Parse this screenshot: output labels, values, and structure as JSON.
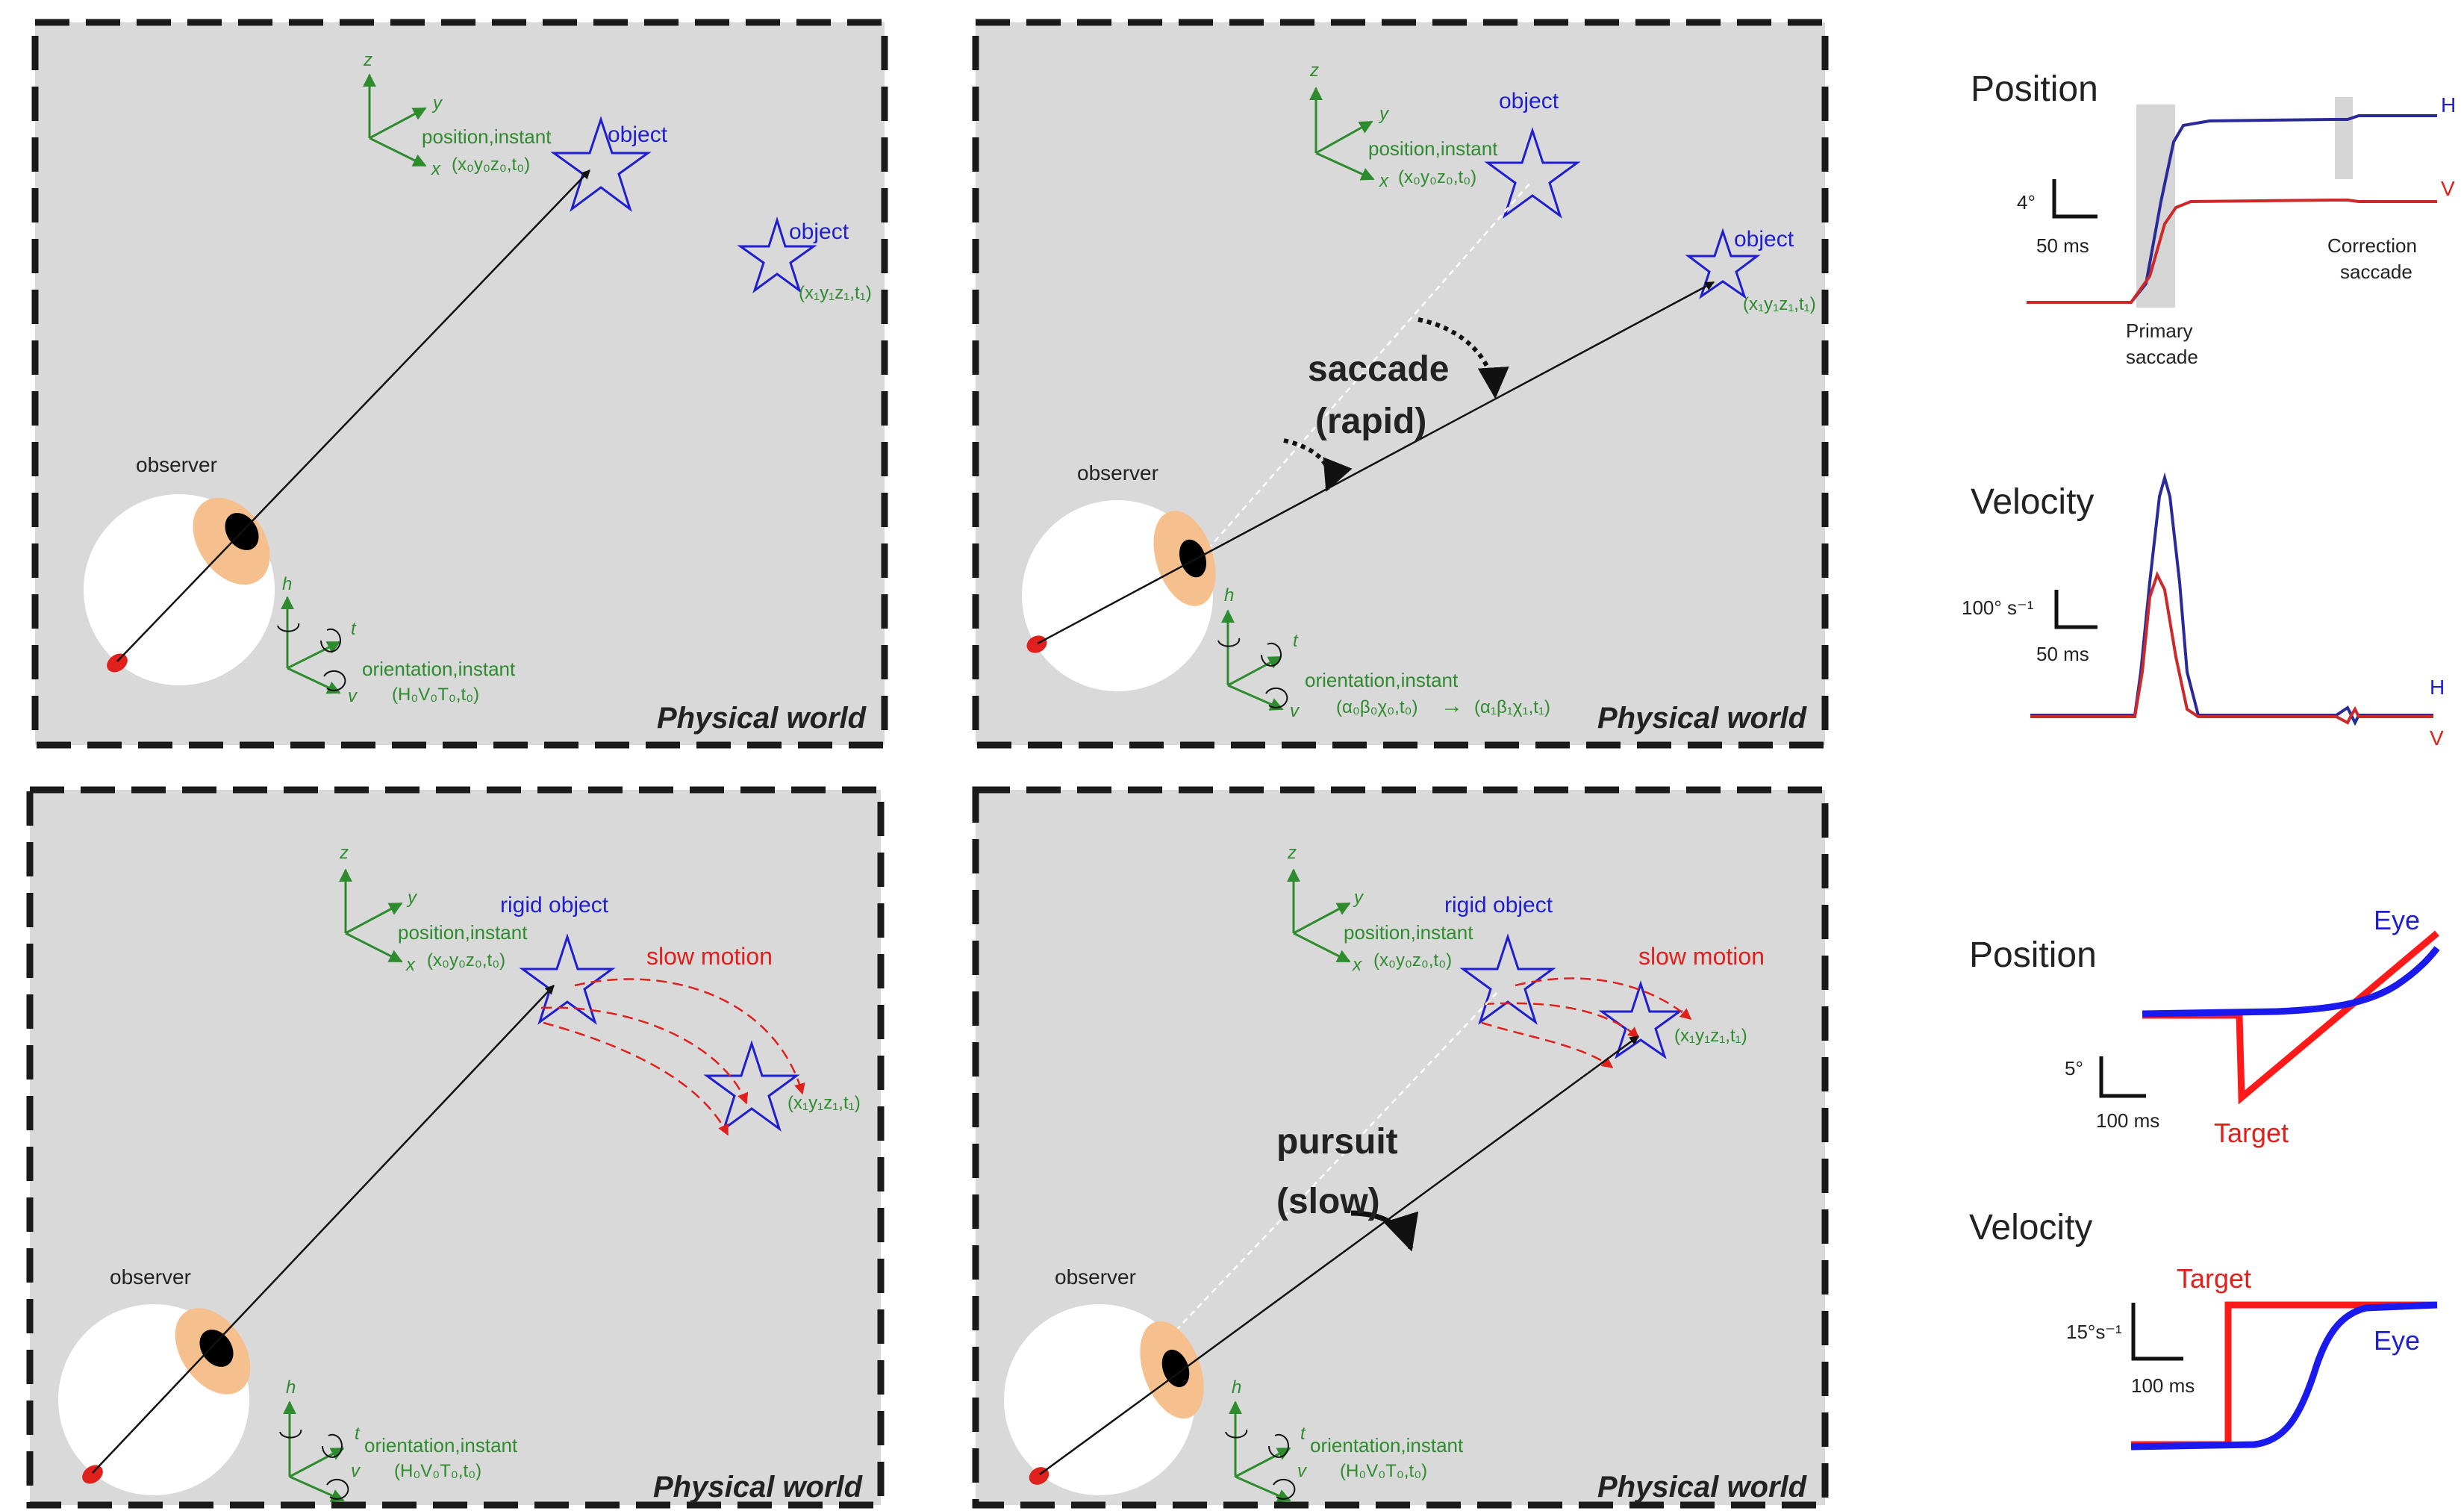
{
  "colors": {
    "panel_bg": "#d9d9d9",
    "panel_border": "#1a1a1a",
    "axis_green": "#2e8b2e",
    "object_blue": "#1f1fd0",
    "motion_red": "#e0201c",
    "eye_skin": "#f6bf8e",
    "trace_blue": "#2a2a9a",
    "trace_red": "#cc2a2a",
    "gaze_line": "#111111"
  },
  "panels": [
    {
      "id": "top-left",
      "axis_labels": {
        "z": "z",
        "y": "y",
        "x": "x"
      },
      "position_label": "position,instant",
      "position_coords": "(x₀y₀z₀,t₀)",
      "objects": [
        {
          "label": "object",
          "coords": ""
        },
        {
          "label": "object",
          "coords": "(x₁y₁z₁,t₁)"
        }
      ],
      "observer_label": "observer",
      "rot_labels": {
        "h": "h",
        "t": "t",
        "v": "v"
      },
      "orientation_label": "orientation,instant",
      "orientation_coords": "(H₀V₀T₀,t₀)",
      "world_label": "Physical world"
    },
    {
      "id": "top-right",
      "axis_labels": {
        "z": "z",
        "y": "y",
        "x": "x"
      },
      "position_label": "position,instant",
      "position_coords": "(x₀y₀z₀,t₀)",
      "objects": [
        {
          "label": "object",
          "coords": ""
        },
        {
          "label": "object",
          "coords": "(x₁y₁z₁,t₁)"
        }
      ],
      "movement_label_line1": "saccade",
      "movement_label_line2": "(rapid)",
      "observer_label": "observer",
      "rot_labels": {
        "h": "h",
        "t": "t",
        "v": "v"
      },
      "orientation_label": "orientation,instant",
      "orientation_coords": "(α₀β₀χ₀,t₀)",
      "orientation_arrow": "→",
      "orientation_coords_2": "(α₁β₁χ₁,t₁)",
      "world_label": "Physical world"
    },
    {
      "id": "bottom-left",
      "axis_labels": {
        "z": "z",
        "y": "y",
        "x": "x"
      },
      "position_label": "position,instant",
      "position_coords": "(x₀y₀z₀,t₀)",
      "objects": [
        {
          "label": "rigid object",
          "coords": ""
        },
        {
          "label": "",
          "coords": "(x₁y₁z₁,t₁)"
        }
      ],
      "motion_label": "slow motion",
      "observer_label": "observer",
      "rot_labels": {
        "h": "h",
        "t": "t",
        "v": "v"
      },
      "orientation_label": "orientation,instant",
      "orientation_coords": "(H₀V₀T₀,t₀)",
      "world_label": "Physical world"
    },
    {
      "id": "bottom-right",
      "axis_labels": {
        "z": "z",
        "y": "y",
        "x": "x"
      },
      "position_label": "position,instant",
      "position_coords": "(x₀y₀z₀,t₀)",
      "objects": [
        {
          "label": "rigid object",
          "coords": ""
        },
        {
          "label": "",
          "coords": "(x₁y₁z₁,t₁)"
        }
      ],
      "motion_label": "slow motion",
      "movement_label_line1": "pursuit",
      "movement_label_line2": "(slow)",
      "observer_label": "observer",
      "rot_labels": {
        "h": "h",
        "t": "t",
        "v": "v"
      },
      "orientation_label": "orientation,instant",
      "orientation_coords": "(H₀V₀T₀,t₀)",
      "world_label": "Physical world"
    }
  ],
  "saccade_traces": {
    "position": {
      "title": "Position",
      "scale_y": "4°",
      "scale_x": "50 ms",
      "series_h": "H",
      "series_v": "V",
      "annotation_primary_1": "Primary",
      "annotation_primary_2": "saccade",
      "annotation_correction_1": "Correction",
      "annotation_correction_2": "saccade"
    },
    "velocity": {
      "title": "Velocity",
      "scale_y": "100° s⁻¹",
      "scale_x": "50 ms",
      "series_h": "H",
      "series_v": "V"
    }
  },
  "pursuit_traces": {
    "position": {
      "title": "Position",
      "scale_y": "5°",
      "scale_x": "100 ms",
      "series_eye": "Eye",
      "series_target": "Target"
    },
    "velocity": {
      "title": "Velocity",
      "scale_y": "15°s⁻¹",
      "scale_x": "100 ms",
      "series_eye": "Eye",
      "series_target": "Target"
    }
  }
}
